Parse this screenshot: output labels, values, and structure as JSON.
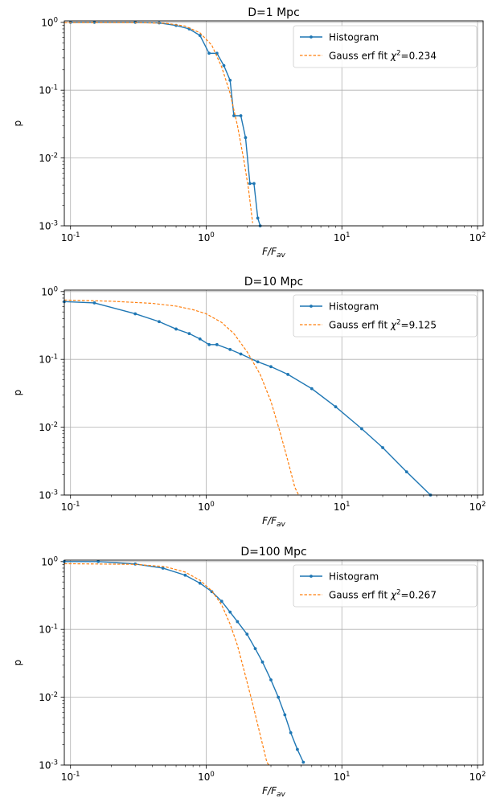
{
  "chart_data": [
    {
      "type": "line",
      "title": "D=1 Mpc",
      "xlabel": "F/F_av",
      "ylabel": "p",
      "x_scale": "log",
      "y_scale": "log",
      "xlim": [
        0.09,
        110
      ],
      "ylim": [
        0.001,
        1.05
      ],
      "grid": true,
      "legend_position": "top-right",
      "legend": {
        "histogram": "Histogram",
        "fit_prefix": "Gauss erf fit ",
        "chi2": "0.234"
      },
      "series": [
        {
          "name": "Histogram",
          "color": "#1f77b4",
          "style": "line-marker",
          "points": [
            [
              0.1,
              1.0
            ],
            [
              0.15,
              1.0
            ],
            [
              0.3,
              1.0
            ],
            [
              0.45,
              0.98
            ],
            [
              0.6,
              0.9
            ],
            [
              0.75,
              0.8
            ],
            [
              0.9,
              0.64
            ],
            [
              1.05,
              0.35
            ],
            [
              1.2,
              0.35
            ],
            [
              1.35,
              0.23
            ],
            [
              1.5,
              0.14
            ],
            [
              1.6,
              0.042
            ],
            [
              1.8,
              0.042
            ],
            [
              1.95,
              0.02
            ],
            [
              2.1,
              0.0042
            ],
            [
              2.25,
              0.0042
            ],
            [
              2.4,
              0.0013
            ],
            [
              2.5,
              0.001
            ]
          ]
        },
        {
          "name": "Gauss erf fit",
          "color": "#ff7f0e",
          "style": "dashed",
          "points": [
            [
              0.09,
              0.99
            ],
            [
              0.3,
              0.99
            ],
            [
              0.5,
              0.97
            ],
            [
              0.7,
              0.88
            ],
            [
              0.9,
              0.7
            ],
            [
              1.1,
              0.46
            ],
            [
              1.3,
              0.22
            ],
            [
              1.5,
              0.09
            ],
            [
              1.7,
              0.03
            ],
            [
              1.9,
              0.009
            ],
            [
              2.05,
              0.0035
            ],
            [
              2.2,
              0.0011
            ]
          ]
        }
      ]
    },
    {
      "type": "line",
      "title": "D=10 Mpc",
      "xlabel": "F/F_av",
      "ylabel": "p",
      "x_scale": "log",
      "y_scale": "log",
      "xlim": [
        0.09,
        110
      ],
      "ylim": [
        0.001,
        1.05
      ],
      "grid": true,
      "legend_position": "top-right",
      "legend": {
        "histogram": "Histogram",
        "fit_prefix": "Gauss erf fit ",
        "chi2": "9.125"
      },
      "series": [
        {
          "name": "Histogram",
          "color": "#1f77b4",
          "style": "line-marker",
          "points": [
            [
              0.09,
              0.71
            ],
            [
              0.15,
              0.68
            ],
            [
              0.3,
              0.47
            ],
            [
              0.45,
              0.36
            ],
            [
              0.6,
              0.28
            ],
            [
              0.75,
              0.24
            ],
            [
              0.9,
              0.2
            ],
            [
              1.05,
              0.165
            ],
            [
              1.2,
              0.165
            ],
            [
              1.5,
              0.14
            ],
            [
              1.8,
              0.12
            ],
            [
              2.4,
              0.092
            ],
            [
              3.0,
              0.078
            ],
            [
              4.0,
              0.06
            ],
            [
              6.0,
              0.037
            ],
            [
              9.0,
              0.02
            ],
            [
              14,
              0.0095
            ],
            [
              20,
              0.005
            ],
            [
              30,
              0.0022
            ],
            [
              45,
              0.001
            ]
          ]
        },
        {
          "name": "Gauss erf fit",
          "color": "#ff7f0e",
          "style": "dashed",
          "points": [
            [
              0.09,
              0.75
            ],
            [
              0.2,
              0.72
            ],
            [
              0.4,
              0.67
            ],
            [
              0.6,
              0.61
            ],
            [
              0.8,
              0.54
            ],
            [
              1.0,
              0.47
            ],
            [
              1.3,
              0.35
            ],
            [
              1.6,
              0.24
            ],
            [
              2.0,
              0.13
            ],
            [
              2.5,
              0.06
            ],
            [
              3.0,
              0.024
            ],
            [
              3.5,
              0.0085
            ],
            [
              4.0,
              0.0032
            ],
            [
              4.5,
              0.0013
            ],
            [
              4.8,
              0.001
            ]
          ]
        }
      ]
    },
    {
      "type": "line",
      "title": "D=100 Mpc",
      "xlabel": "F/F_av",
      "ylabel": "p",
      "x_scale": "log",
      "y_scale": "log",
      "xlim": [
        0.09,
        110
      ],
      "ylim": [
        0.001,
        1.05
      ],
      "grid": true,
      "legend_position": "top-right",
      "legend": {
        "histogram": "Histogram",
        "fit_prefix": "Gauss erf fit ",
        "chi2": "0.267"
      },
      "series": [
        {
          "name": "Histogram",
          "color": "#1f77b4",
          "style": "line-marker",
          "points": [
            [
              0.09,
              1.0
            ],
            [
              0.16,
              1.0
            ],
            [
              0.3,
              0.92
            ],
            [
              0.48,
              0.8
            ],
            [
              0.7,
              0.63
            ],
            [
              0.9,
              0.48
            ],
            [
              1.1,
              0.36
            ],
            [
              1.3,
              0.26
            ],
            [
              1.5,
              0.18
            ],
            [
              1.7,
              0.13
            ],
            [
              2.0,
              0.085
            ],
            [
              2.3,
              0.052
            ],
            [
              2.6,
              0.033
            ],
            [
              3.0,
              0.018
            ],
            [
              3.4,
              0.01
            ],
            [
              3.8,
              0.0055
            ],
            [
              4.2,
              0.003
            ],
            [
              4.7,
              0.0017
            ],
            [
              5.2,
              0.0011
            ]
          ]
        },
        {
          "name": "Gauss erf fit",
          "color": "#ff7f0e",
          "style": "dashed",
          "points": [
            [
              0.09,
              0.93
            ],
            [
              0.3,
              0.91
            ],
            [
              0.5,
              0.84
            ],
            [
              0.7,
              0.7
            ],
            [
              0.9,
              0.53
            ],
            [
              1.1,
              0.37
            ],
            [
              1.3,
              0.23
            ],
            [
              1.5,
              0.12
            ],
            [
              1.7,
              0.058
            ],
            [
              1.9,
              0.025
            ],
            [
              2.2,
              0.008
            ],
            [
              2.5,
              0.0028
            ],
            [
              2.8,
              0.0011
            ],
            [
              2.9,
              0.001
            ]
          ]
        }
      ]
    }
  ]
}
